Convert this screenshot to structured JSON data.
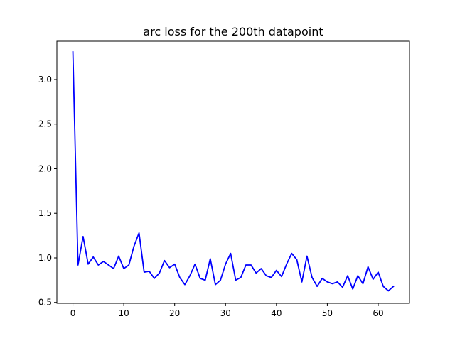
{
  "chart_data": {
    "type": "line",
    "title": "arc loss for the 200th datapoint",
    "xlabel": "",
    "ylabel": "",
    "xlim": [
      -3.15,
      66.15
    ],
    "ylim": [
      0.49,
      3.43
    ],
    "x_ticks": [
      0,
      10,
      20,
      30,
      40,
      50,
      60
    ],
    "x_tick_labels": [
      "0",
      "10",
      "20",
      "30",
      "40",
      "50",
      "60"
    ],
    "y_ticks": [
      0.5,
      1.0,
      1.5,
      2.0,
      2.5,
      3.0
    ],
    "y_tick_labels": [
      "0.5",
      "1.0",
      "1.5",
      "2.0",
      "2.5",
      "3.0"
    ],
    "grid": false,
    "legend": "none",
    "series": [
      {
        "color": "#0000ff",
        "x": [
          0,
          1,
          2,
          3,
          4,
          5,
          6,
          7,
          8,
          9,
          10,
          11,
          12,
          13,
          14,
          15,
          16,
          17,
          18,
          19,
          20,
          21,
          22,
          23,
          24,
          25,
          26,
          27,
          28,
          29,
          30,
          31,
          32,
          33,
          34,
          35,
          36,
          37,
          38,
          39,
          40,
          41,
          42,
          43,
          44,
          45,
          46,
          47,
          48,
          49,
          50,
          51,
          52,
          53,
          54,
          55,
          56,
          57,
          58,
          59,
          60,
          61,
          62,
          63
        ],
        "values": [
          3.31,
          0.92,
          1.24,
          0.93,
          1.01,
          0.92,
          0.96,
          0.92,
          0.88,
          1.02,
          0.88,
          0.92,
          1.13,
          1.28,
          0.84,
          0.85,
          0.77,
          0.83,
          0.97,
          0.89,
          0.93,
          0.78,
          0.7,
          0.8,
          0.93,
          0.77,
          0.75,
          0.99,
          0.7,
          0.75,
          0.93,
          1.05,
          0.75,
          0.78,
          0.92,
          0.92,
          0.83,
          0.88,
          0.8,
          0.78,
          0.86,
          0.79,
          0.93,
          1.05,
          0.98,
          0.73,
          1.02,
          0.78,
          0.68,
          0.77,
          0.73,
          0.71,
          0.73,
          0.67,
          0.8,
          0.65,
          0.8,
          0.71,
          0.9,
          0.76,
          0.84,
          0.68,
          0.63,
          0.68
        ]
      }
    ]
  }
}
